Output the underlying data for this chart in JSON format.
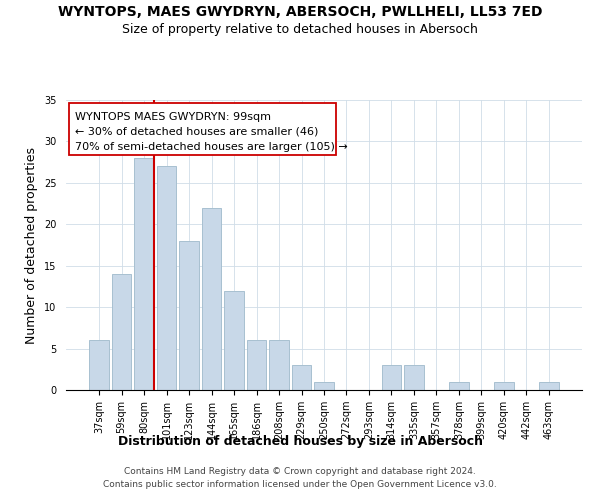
{
  "title": "WYNTOPS, MAES GWYDRYN, ABERSOCH, PWLLHELI, LL53 7ED",
  "subtitle": "Size of property relative to detached houses in Abersoch",
  "xlabel": "Distribution of detached houses by size in Abersoch",
  "ylabel": "Number of detached properties",
  "bar_labels": [
    "37sqm",
    "59sqm",
    "80sqm",
    "101sqm",
    "123sqm",
    "144sqm",
    "165sqm",
    "186sqm",
    "208sqm",
    "229sqm",
    "250sqm",
    "272sqm",
    "293sqm",
    "314sqm",
    "335sqm",
    "357sqm",
    "378sqm",
    "399sqm",
    "420sqm",
    "442sqm",
    "463sqm"
  ],
  "bar_values": [
    6,
    14,
    28,
    27,
    18,
    22,
    12,
    6,
    6,
    3,
    1,
    0,
    0,
    3,
    3,
    0,
    1,
    0,
    1,
    0,
    1
  ],
  "bar_color": "#c8d8e8",
  "bar_edge_color": "#a8c0d0",
  "vline_color": "#cc0000",
  "ylim": [
    0,
    35
  ],
  "annotation_line1": "WYNTOPS MAES GWYDRYN: 99sqm",
  "annotation_line2": "← 30% of detached houses are smaller (46)",
  "annotation_line3": "70% of semi-detached houses are larger (105) →",
  "footer_line1": "Contains HM Land Registry data © Crown copyright and database right 2024.",
  "footer_line2": "Contains public sector information licensed under the Open Government Licence v3.0.",
  "title_fontsize": 10,
  "subtitle_fontsize": 9,
  "axis_label_fontsize": 9,
  "tick_fontsize": 7,
  "annotation_fontsize": 8,
  "footer_fontsize": 6.5
}
